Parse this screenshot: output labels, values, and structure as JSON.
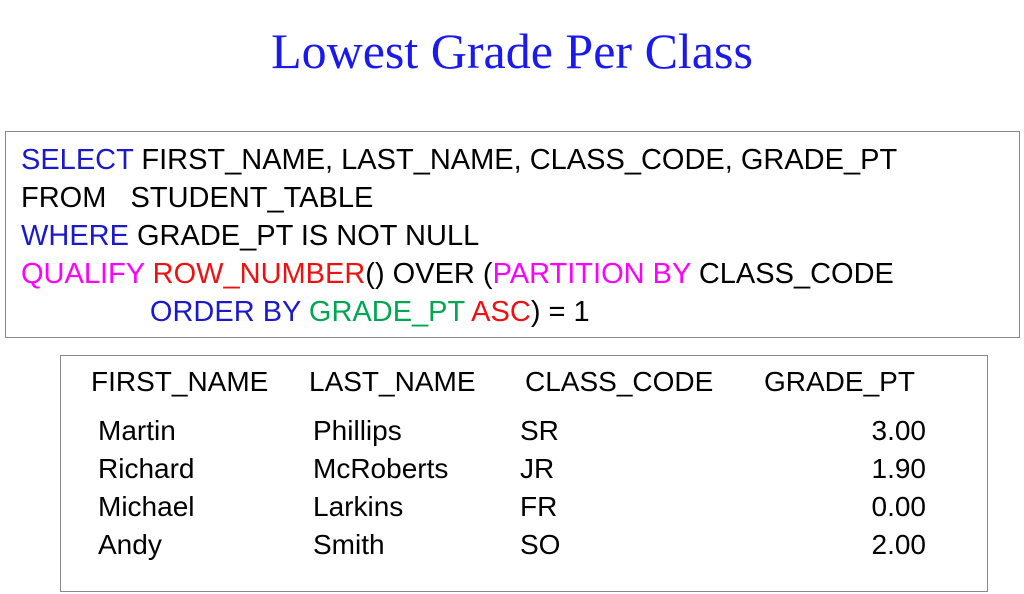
{
  "title": "Lowest Grade Per Class",
  "colors": {
    "keyword_blue": "#1a1acc",
    "magenta": "#ff00ff",
    "red": "#ee1111",
    "green": "#00a651",
    "text": "#000000"
  },
  "query_lines": [
    [
      {
        "t": "SELECT ",
        "c": "keyword_blue"
      },
      {
        "t": "FIRST_NAME, LAST_NAME, CLASS_CODE, GRADE_PT",
        "c": "text"
      }
    ],
    [
      {
        "t": "FROM   STUDENT_TABLE",
        "c": "text"
      }
    ],
    [
      {
        "t": "WHERE ",
        "c": "keyword_blue"
      },
      {
        "t": "GRADE_PT IS NOT NULL",
        "c": "text"
      }
    ],
    [
      {
        "t": "QUALIFY ",
        "c": "magenta"
      },
      {
        "t": "ROW_NUMBER",
        "c": "red"
      },
      {
        "t": "() OVER (",
        "c": "text"
      },
      {
        "t": "PARTITION BY ",
        "c": "magenta"
      },
      {
        "t": "CLASS_CODE",
        "c": "text"
      }
    ],
    [
      {
        "t": "                ORDER BY ",
        "c": "keyword_blue"
      },
      {
        "t": "GRADE_PT ",
        "c": "green"
      },
      {
        "t": "ASC",
        "c": "red"
      },
      {
        "t": ") = 1",
        "c": "text"
      }
    ]
  ],
  "result": {
    "headers": [
      "FIRST_NAME",
      "LAST_NAME",
      "CLASS_CODE",
      "GRADE_PT"
    ],
    "rows": [
      [
        "Martin",
        "Phillips",
        "SR",
        "3.00"
      ],
      [
        "Richard",
        "McRoberts",
        "JR",
        "1.90"
      ],
      [
        "Michael",
        "Larkins",
        "FR",
        "0.00"
      ],
      [
        "Andy",
        "Smith",
        "SO",
        "2.00"
      ]
    ]
  }
}
